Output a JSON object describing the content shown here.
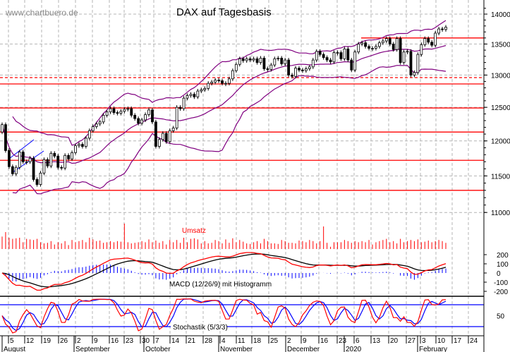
{
  "header": {
    "site": "www.chartbuero.de",
    "title": "DAX auf Tagesbasis"
  },
  "colors": {
    "bollinger": "#800080",
    "levels": "#ff0000",
    "volume": "#ff0000",
    "macd": "#ff0000",
    "signal": "#000000",
    "histogram": "#0000ff",
    "stoch_k": "#ff0000",
    "stoch_d": "#0000ff",
    "stoch_bounds": "#0000ff",
    "grid": "#b4b4b4"
  },
  "chart_data": {
    "type": "candlestick",
    "title": "DAX auf Tagesbasis",
    "price_scale": "log",
    "ylim": [
      10800,
      14200
    ],
    "price_ticks": [
      "14000",
      "13500",
      "13000",
      "12500",
      "12000",
      "11500",
      "11000"
    ],
    "first_open": 12130,
    "closes": [
      12240,
      11860,
      11630,
      11530,
      11620,
      11840,
      11700,
      11700,
      11750,
      11450,
      11380,
      11540,
      11730,
      11640,
      11820,
      11780,
      11620,
      11610,
      11790,
      11740,
      11830,
      11930,
      11950,
      11920,
      12040,
      12150,
      12210,
      12250,
      12280,
      12380,
      12430,
      12480,
      12420,
      12410,
      12440,
      12470,
      12480,
      12380,
      12330,
      12260,
      12310,
      12390,
      12460,
      12280,
      11920,
      12020,
      12110,
      11990,
      12150,
      12190,
      12500,
      12480,
      12640,
      12680,
      12700,
      12660,
      12750,
      12770,
      12790,
      12870,
      12890,
      12920,
      12910,
      12870,
      12870,
      12940,
      13070,
      13170,
      13260,
      13230,
      13260,
      13240,
      13260,
      13200,
      13270,
      13100,
      13090,
      13160,
      13260,
      13270,
      13180,
      13240,
      13000,
      12980,
      13110,
      13080,
      13070,
      13100,
      13130,
      13240,
      13380,
      13330,
      13280,
      13240,
      13210,
      13360,
      13360,
      13260,
      13420,
      13240,
      13080,
      13370,
      13500,
      13520,
      13460,
      13430,
      13430,
      13460,
      13520,
      13550,
      13590,
      13500,
      13410,
      13590,
      13200,
      13370,
      13380,
      13000,
      13040,
      13330,
      13490,
      13590,
      13530,
      13480,
      13680,
      13750,
      13740,
      13780
    ],
    "levels": [
      {
        "value": 13600,
        "style": "solid",
        "partial": true
      },
      {
        "value": 12960,
        "style": "dashed"
      },
      {
        "value": 12860,
        "style": "solid"
      },
      {
        "value": 12490,
        "style": "solid"
      },
      {
        "value": 12130,
        "style": "solid"
      },
      {
        "value": 11720,
        "style": "solid"
      },
      {
        "value": 11300,
        "style": "solid"
      }
    ],
    "bollinger": {
      "period": 20,
      "stddev": 2
    },
    "volume": {
      "label": "Umsatz",
      "values": [
        22,
        30,
        20,
        18,
        19,
        20,
        12,
        18,
        17,
        16,
        18,
        12,
        10,
        11,
        14,
        8,
        12,
        10,
        14,
        7,
        16,
        12,
        14,
        16,
        12,
        20,
        17,
        14,
        15,
        11,
        12,
        14,
        12,
        14,
        13,
        45,
        12,
        10,
        11,
        12,
        14,
        12,
        17,
        12,
        15,
        11,
        14,
        8,
        16,
        12,
        16,
        11,
        20,
        12,
        18,
        19,
        17,
        10,
        14,
        10,
        11,
        16,
        14,
        10,
        17,
        11,
        19,
        12,
        16,
        13,
        10,
        9,
        12,
        14,
        10,
        18,
        14,
        10,
        10,
        9,
        16,
        14,
        11,
        11,
        10,
        15,
        14,
        12,
        16,
        14,
        10,
        14,
        40,
        11,
        4,
        12,
        12,
        12,
        16,
        14,
        11,
        14,
        12,
        14,
        12,
        16,
        8,
        12,
        14,
        16,
        18,
        12,
        14,
        10,
        18,
        12,
        14,
        16,
        14,
        17,
        12,
        13,
        15,
        12,
        14,
        16,
        14,
        11
      ]
    },
    "macd": {
      "label": "MACD (12/26/9) mit Histogramm",
      "ticks": [
        "200",
        "100",
        "0",
        "-100",
        "-200"
      ],
      "ylim": [
        -250,
        250
      ]
    },
    "stochastic": {
      "label": "Stochastik (5/3/3)",
      "ticks": [
        "50"
      ],
      "bounds": [
        20,
        80
      ]
    },
    "x_axis": {
      "day_labels": [
        "5",
        "12",
        "19",
        "26",
        "2",
        "9",
        "16",
        "23",
        "30",
        "7",
        "14",
        "21",
        "28",
        "4",
        "11",
        "18",
        "25",
        "2",
        "9",
        "16",
        "23",
        "6",
        "13",
        "20",
        "27",
        "3",
        "10",
        "17",
        "24"
      ],
      "month_labels": [
        "August",
        "September",
        "October",
        "November",
        "December",
        "2020",
        "February"
      ]
    }
  }
}
